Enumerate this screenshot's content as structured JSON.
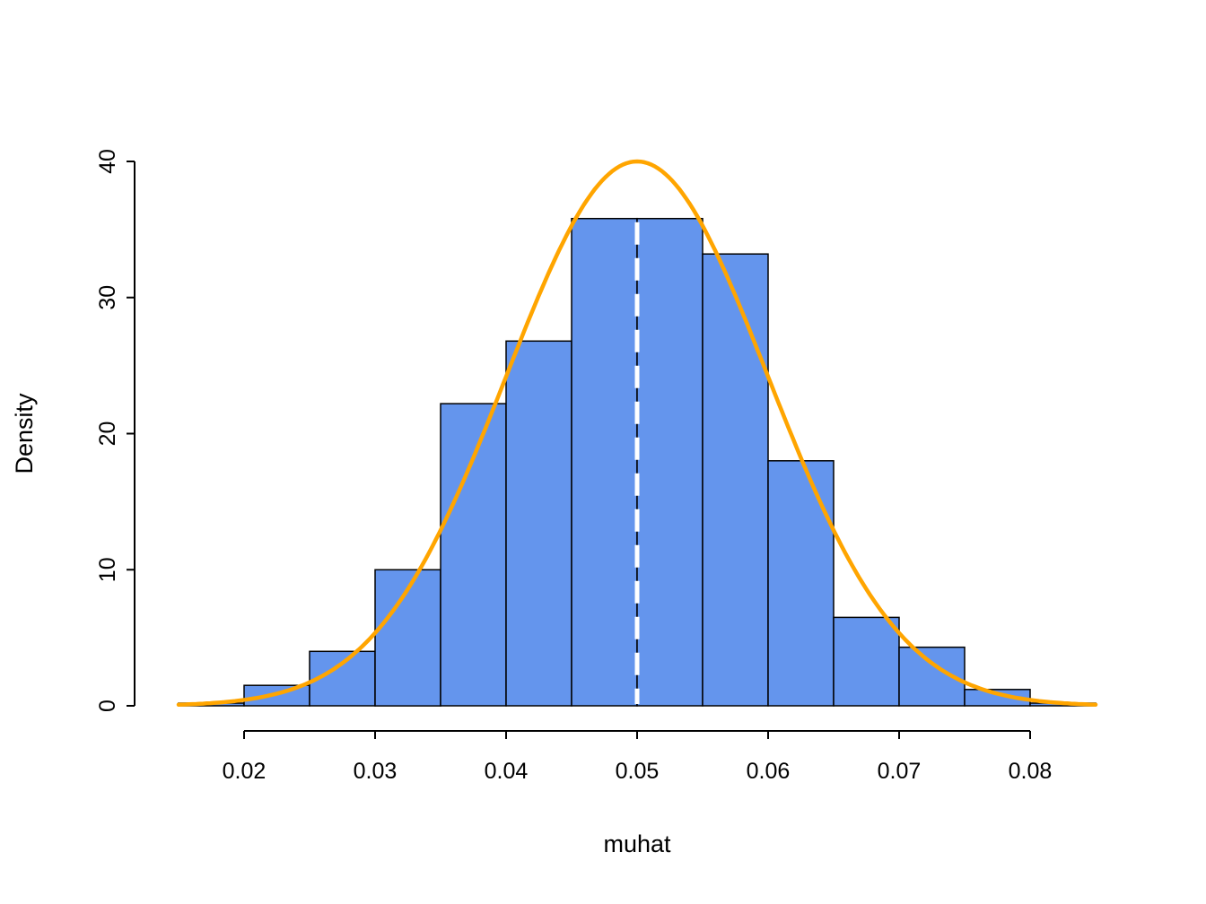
{
  "chart_data": {
    "type": "bar",
    "subtype": "histogram-with-density-curve",
    "title": "",
    "xlabel": "muhat",
    "ylabel": "Density",
    "xlim": [
      0.015,
      0.085
    ],
    "ylim": [
      0,
      40
    ],
    "x_ticks": [
      "0.02",
      "0.03",
      "0.04",
      "0.05",
      "0.06",
      "0.07",
      "0.08"
    ],
    "x_tick_values": [
      0.02,
      0.03,
      0.04,
      0.05,
      0.06,
      0.07,
      0.08
    ],
    "y_ticks": [
      "0",
      "10",
      "20",
      "30",
      "40"
    ],
    "y_tick_values": [
      0,
      10,
      20,
      30,
      40
    ],
    "grid": "off",
    "legend": "none",
    "bins": {
      "start": 0.015,
      "width": 0.005,
      "edges": [
        0.015,
        0.02,
        0.025,
        0.03,
        0.035,
        0.04,
        0.045,
        0.05,
        0.055,
        0.06,
        0.065,
        0.07,
        0.075,
        0.08,
        0.085
      ],
      "densities": [
        0.2,
        1.5,
        4.0,
        10.0,
        22.2,
        26.8,
        35.8,
        35.8,
        33.2,
        18.0,
        6.5,
        4.3,
        1.2,
        0.2
      ]
    },
    "overlay_curve": {
      "type": "normal-density",
      "mean": 0.05,
      "sd": 0.00997,
      "peak": 40
    },
    "vline": {
      "x": 0.05,
      "style": "dashed",
      "color": "#FFFFFF"
    },
    "colors": {
      "bar_fill": "#6495ED",
      "bar_stroke": "#000000",
      "curve": "#FFA500",
      "vline": "#FFFFFF",
      "axis": "#000000",
      "background": "#FFFFFF"
    }
  }
}
